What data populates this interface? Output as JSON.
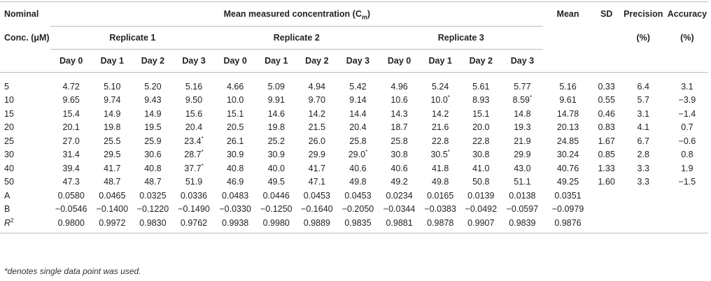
{
  "header": {
    "nominal_line1": "Nominal",
    "nominal_line2": "Conc. (μM)",
    "mean_measured_prefix": "Mean measured concentration (C",
    "mean_measured_sub": "m",
    "mean_measured_suffix": ")",
    "mean": "Mean",
    "sd": "SD",
    "precision": "Precision",
    "precision_unit": "(%)",
    "accuracy": "Accuracy",
    "accuracy_unit": "(%)",
    "replicates": [
      "Replicate 1",
      "Replicate 2",
      "Replicate 3"
    ],
    "days": [
      "Day 0",
      "Day 1",
      "Day 2",
      "Day 3",
      "Day 0",
      "Day 1",
      "Day 2",
      "Day 3",
      "Day 0",
      "Day 1",
      "Day 2",
      "Day 3"
    ]
  },
  "rows": [
    {
      "label": "5",
      "cells": [
        "4.72",
        "5.10",
        "5.20",
        "5.16",
        "4.66",
        "5.09",
        "4.94",
        "5.42",
        "4.96",
        "5.24",
        "5.61",
        "5.77"
      ],
      "mean": "5.16",
      "sd": "0.33",
      "precision": "6.4",
      "accuracy": "3.1"
    },
    {
      "label": "10",
      "cells": [
        "9.65",
        "9.74",
        "9.43",
        "9.50",
        "10.0",
        "9.91",
        "9.70",
        "9.14",
        "10.6",
        "10.0*",
        "8.93",
        "8.59*"
      ],
      "mean": "9.61",
      "sd": "0.55",
      "precision": "5.7",
      "accuracy": "−3.9"
    },
    {
      "label": "15",
      "cells": [
        "15.4",
        "14.9",
        "14.9",
        "15.6",
        "15.1",
        "14.6",
        "14.2",
        "14.4",
        "14.3",
        "14.2",
        "15.1",
        "14.8"
      ],
      "mean": "14.78",
      "sd": "0.46",
      "precision": "3.1",
      "accuracy": "−1.4"
    },
    {
      "label": "20",
      "cells": [
        "20.1",
        "19.8",
        "19.5",
        "20.4",
        "20.5",
        "19.8",
        "21.5",
        "20.4",
        "18.7",
        "21.6",
        "20.0",
        "19.3"
      ],
      "mean": "20.13",
      "sd": "0.83",
      "precision": "4.1",
      "accuracy": "0.7"
    },
    {
      "label": "25",
      "cells": [
        "27.0",
        "25.5",
        "25.9",
        "23.4*",
        "26.1",
        "25.2",
        "26.0",
        "25.8",
        "25.8",
        "22.8",
        "22.8",
        "21.9"
      ],
      "mean": "24.85",
      "sd": "1.67",
      "precision": "6.7",
      "accuracy": "−0.6"
    },
    {
      "label": "30",
      "cells": [
        "31.4",
        "29.5",
        "30.6",
        "28.7*",
        "30.9",
        "30.9",
        "29.9",
        "29.0*",
        "30.8",
        "30.5*",
        "30.8",
        "29.9"
      ],
      "mean": "30.24",
      "sd": "0.85",
      "precision": "2.8",
      "accuracy": "0.8"
    },
    {
      "label": "40",
      "cells": [
        "39.4",
        "41.7",
        "40.8",
        "37.7*",
        "40.8",
        "40.0",
        "41.7",
        "40.6",
        "40.6",
        "41.8",
        "41.0",
        "43.0"
      ],
      "mean": "40.76",
      "sd": "1.33",
      "precision": "3.3",
      "accuracy": "1.9"
    },
    {
      "label": "50",
      "cells": [
        "47.3",
        "48.7",
        "48.7",
        "51.9",
        "46.9",
        "49.5",
        "47.1",
        "49.8",
        "49.2",
        "49.8",
        "50.8",
        "51.1"
      ],
      "mean": "49.25",
      "sd": "1.60",
      "precision": "3.3",
      "accuracy": "−1.5"
    },
    {
      "label": "A",
      "cells": [
        "0.0580",
        "0.0465",
        "0.0325",
        "0.0336",
        "0.0483",
        "0.0446",
        "0.0453",
        "0.0453",
        "0.0234",
        "0.0165",
        "0.0139",
        "0.0138"
      ],
      "mean": "0.0351",
      "sd": "",
      "precision": "",
      "accuracy": ""
    },
    {
      "label": "B",
      "cells": [
        "−0.0546",
        "−0.1400",
        "−0.1220",
        "−0.1490",
        "−0.0330",
        "−0.1250",
        "−0.1640",
        "−0.2050",
        "−0.0344",
        "−0.0383",
        "−0.0492",
        "−0.0597"
      ],
      "mean": "−0.0979",
      "sd": "",
      "precision": "",
      "accuracy": ""
    },
    {
      "label": "R",
      "label_sup": "2",
      "cells": [
        "0.9800",
        "0.9972",
        "0.9830",
        "0.9762",
        "0.9938",
        "0.9980",
        "0.9889",
        "0.9835",
        "0.9881",
        "0.9878",
        "0.9907",
        "0.9839"
      ],
      "mean": "0.9876",
      "sd": "",
      "precision": "",
      "accuracy": ""
    }
  ],
  "footnote": "*denotes single data point was used."
}
